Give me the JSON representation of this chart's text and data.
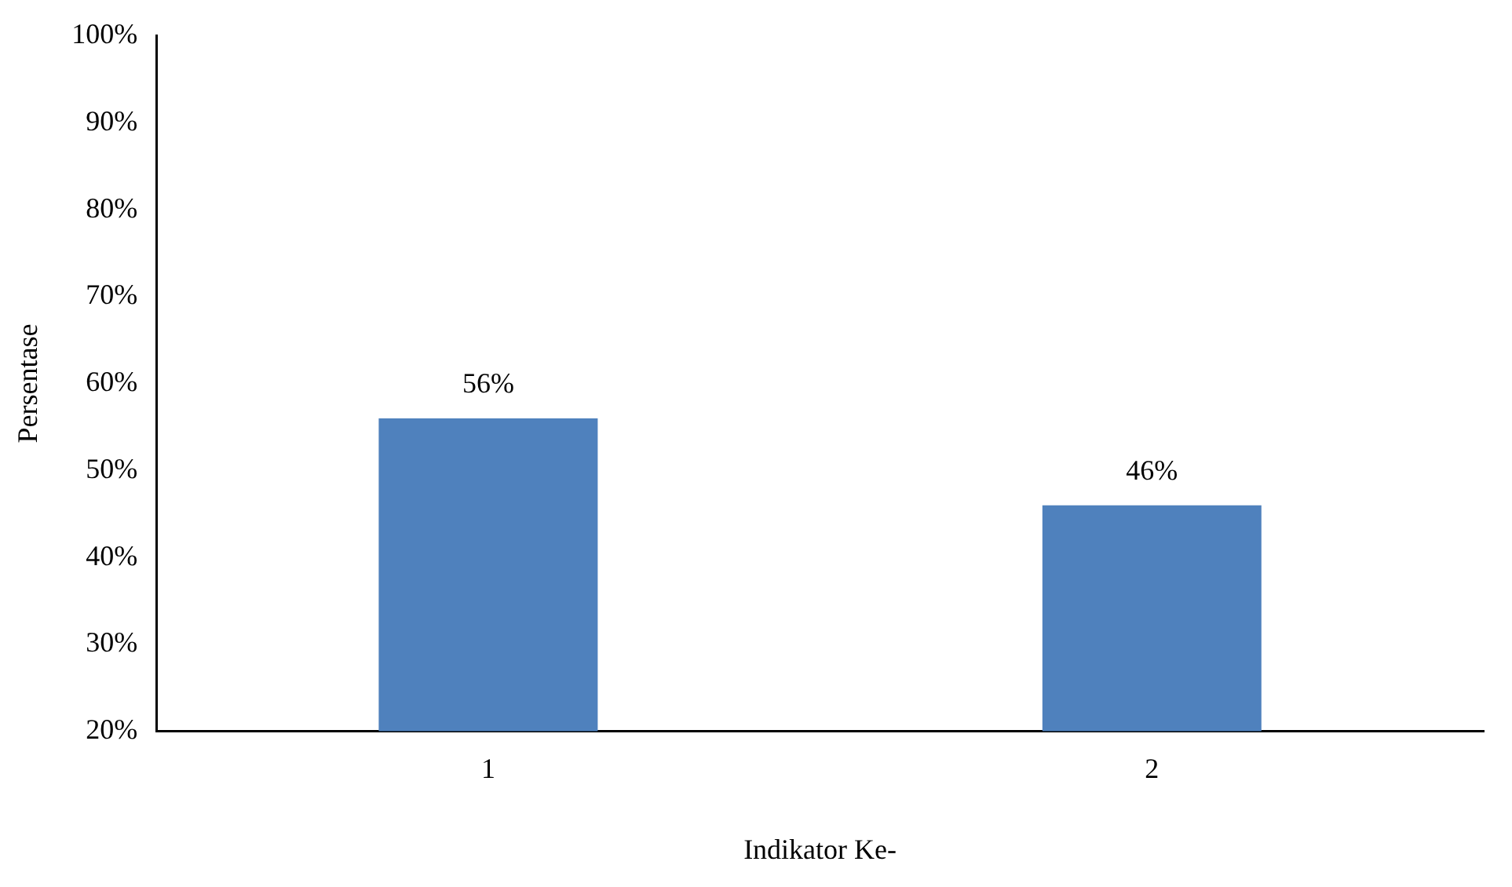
{
  "chart_data": {
    "type": "bar",
    "xlabel": "Indikator Ke-",
    "ylabel": "Persentase",
    "categories": [
      "1",
      "2"
    ],
    "values": [
      56,
      46
    ],
    "value_labels": [
      "56%",
      "46%"
    ],
    "color": "#4f81bd",
    "ylim": [
      20,
      100
    ],
    "yticks": [
      {
        "value": 20,
        "label": "20%"
      },
      {
        "value": 30,
        "label": "30%"
      },
      {
        "value": 40,
        "label": "40%"
      },
      {
        "value": 50,
        "label": "50%"
      },
      {
        "value": 60,
        "label": "60%"
      },
      {
        "value": 70,
        "label": "70%"
      },
      {
        "value": 80,
        "label": "80%"
      },
      {
        "value": 90,
        "label": "90%"
      },
      {
        "value": 100,
        "label": "100%"
      }
    ],
    "grid": false,
    "legend": false
  }
}
